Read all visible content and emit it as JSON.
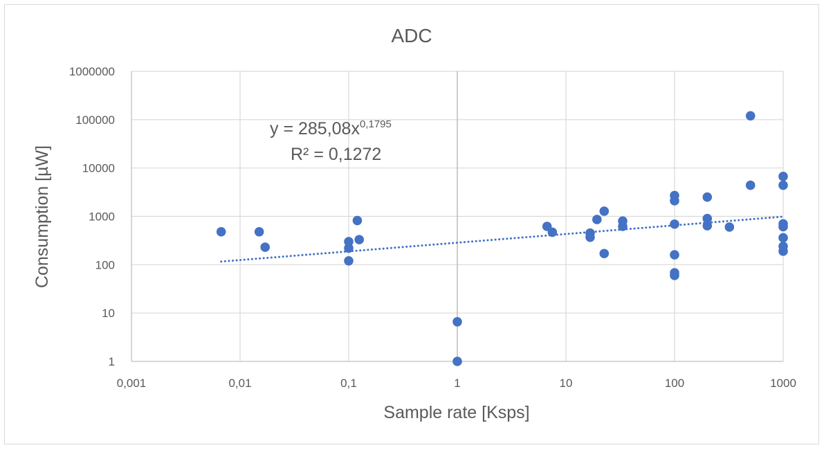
{
  "chart_data": {
    "type": "scatter",
    "title": "ADC",
    "xlabel": "Sample rate [Ksps]",
    "ylabel": "Consumption [µW]",
    "x_scale": "log",
    "y_scale": "log",
    "xlim": [
      0.001,
      1000
    ],
    "ylim": [
      1,
      1000000
    ],
    "x_ticks": [
      "0,001",
      "0,01",
      "0,1",
      "1",
      "10",
      "100",
      "1000"
    ],
    "y_ticks": [
      "1",
      "10",
      "100",
      "1000",
      "10000",
      "100000",
      "1000000"
    ],
    "grid": true,
    "legend": "none",
    "marker_color": "#4472c4",
    "trendline": {
      "type": "power",
      "coefficient": 285.08,
      "exponent": 0.1795,
      "r_squared": 0.1272,
      "style": "dotted",
      "x_range": [
        0.0067,
        1000
      ],
      "equation_text": "y = 285,08x",
      "exponent_text": "0,1795",
      "r2_text": "R² = 0,1272"
    },
    "points": [
      [
        0.0067,
        480
      ],
      [
        0.015,
        480
      ],
      [
        0.017,
        230
      ],
      [
        0.1,
        300
      ],
      [
        0.1,
        220
      ],
      [
        0.1,
        120
      ],
      [
        0.12,
        820
      ],
      [
        0.125,
        330
      ],
      [
        1,
        6.6
      ],
      [
        1,
        1
      ],
      [
        6.7,
        620
      ],
      [
        7.5,
        470
      ],
      [
        16.7,
        450
      ],
      [
        16.7,
        370
      ],
      [
        19.3,
        860
      ],
      [
        22.5,
        1280
      ],
      [
        22.5,
        170
      ],
      [
        33.3,
        800
      ],
      [
        33.3,
        620
      ],
      [
        100,
        2700
      ],
      [
        100,
        2100
      ],
      [
        100,
        690
      ],
      [
        100,
        160
      ],
      [
        100,
        68
      ],
      [
        100,
        60
      ],
      [
        200,
        2500
      ],
      [
        200,
        900
      ],
      [
        200,
        640
      ],
      [
        320,
        600
      ],
      [
        500,
        120000
      ],
      [
        500,
        4400
      ],
      [
        1000,
        6700
      ],
      [
        1000,
        4400
      ],
      [
        1000,
        700
      ],
      [
        1000,
        610
      ],
      [
        1000,
        360
      ],
      [
        1000,
        240
      ],
      [
        1000,
        190
      ]
    ]
  }
}
